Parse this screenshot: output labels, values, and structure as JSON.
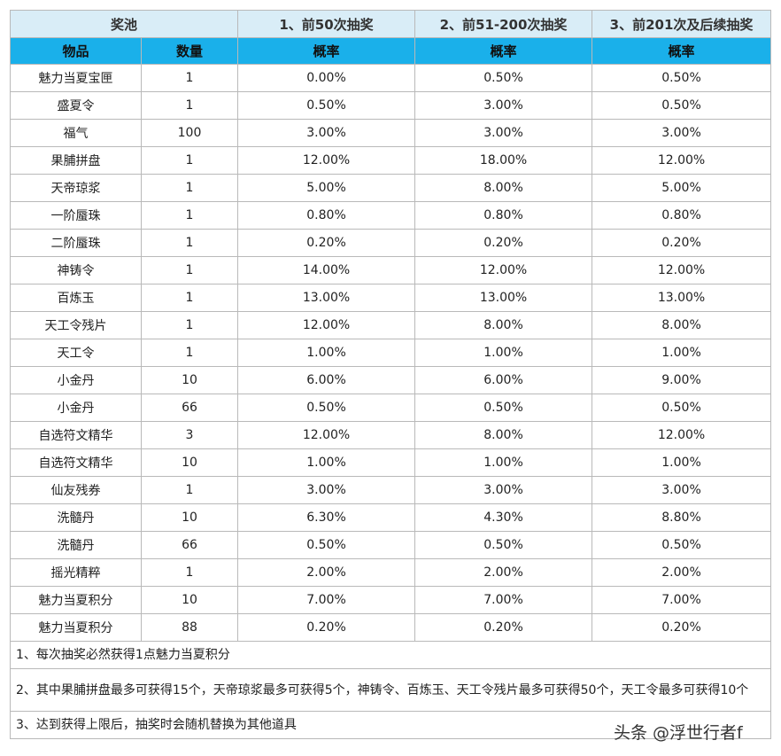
{
  "header": {
    "pool_label": "奖池",
    "phase1": "1、前50次抽奖",
    "phase2": "2、前51-200次抽奖",
    "phase3": "3、前201次及后续抽奖"
  },
  "subheader": {
    "item": "物品",
    "quantity": "数量",
    "prob1": "概率",
    "prob2": "概率",
    "prob3": "概率"
  },
  "rows": [
    {
      "item": "魅力当夏宝匣",
      "qty": "1",
      "p1": "0.00%",
      "p2": "0.50%",
      "p3": "0.50%"
    },
    {
      "item": "盛夏令",
      "qty": "1",
      "p1": "0.50%",
      "p2": "3.00%",
      "p3": "0.50%"
    },
    {
      "item": "福气",
      "qty": "100",
      "p1": "3.00%",
      "p2": "3.00%",
      "p3": "3.00%"
    },
    {
      "item": "果脯拼盘",
      "qty": "1",
      "p1": "12.00%",
      "p2": "18.00%",
      "p3": "12.00%"
    },
    {
      "item": "天帝琼浆",
      "qty": "1",
      "p1": "5.00%",
      "p2": "8.00%",
      "p3": "5.00%"
    },
    {
      "item": "一阶蜃珠",
      "qty": "1",
      "p1": "0.80%",
      "p2": "0.80%",
      "p3": "0.80%"
    },
    {
      "item": "二阶蜃珠",
      "qty": "1",
      "p1": "0.20%",
      "p2": "0.20%",
      "p3": "0.20%"
    },
    {
      "item": "神铸令",
      "qty": "1",
      "p1": "14.00%",
      "p2": "12.00%",
      "p3": "12.00%"
    },
    {
      "item": "百炼玉",
      "qty": "1",
      "p1": "13.00%",
      "p2": "13.00%",
      "p3": "13.00%"
    },
    {
      "item": "天工令残片",
      "qty": "1",
      "p1": "12.00%",
      "p2": "8.00%",
      "p3": "8.00%"
    },
    {
      "item": "天工令",
      "qty": "1",
      "p1": "1.00%",
      "p2": "1.00%",
      "p3": "1.00%"
    },
    {
      "item": "小金丹",
      "qty": "10",
      "p1": "6.00%",
      "p2": "6.00%",
      "p3": "9.00%"
    },
    {
      "item": "小金丹",
      "qty": "66",
      "p1": "0.50%",
      "p2": "0.50%",
      "p3": "0.50%"
    },
    {
      "item": "自选符文精华",
      "qty": "3",
      "p1": "12.00%",
      "p2": "8.00%",
      "p3": "12.00%"
    },
    {
      "item": "自选符文精华",
      "qty": "10",
      "p1": "1.00%",
      "p2": "1.00%",
      "p3": "1.00%"
    },
    {
      "item": "仙友残券",
      "qty": "1",
      "p1": "3.00%",
      "p2": "3.00%",
      "p3": "3.00%"
    },
    {
      "item": "洗髓丹",
      "qty": "10",
      "p1": "6.30%",
      "p2": "4.30%",
      "p3": "8.80%"
    },
    {
      "item": "洗髓丹",
      "qty": "66",
      "p1": "0.50%",
      "p2": "0.50%",
      "p3": "0.50%"
    },
    {
      "item": "摇光精粹",
      "qty": "1",
      "p1": "2.00%",
      "p2": "2.00%",
      "p3": "2.00%"
    },
    {
      "item": "魅力当夏积分",
      "qty": "10",
      "p1": "7.00%",
      "p2": "7.00%",
      "p3": "7.00%"
    },
    {
      "item": "魅力当夏积分",
      "qty": "88",
      "p1": "0.20%",
      "p2": "0.20%",
      "p3": "0.20%"
    }
  ],
  "notes": [
    "1、每次抽奖必然获得1点魅力当夏积分",
    "2、其中果脯拼盘最多可获得15个，天帝琼浆最多可获得5个，神铸令、百炼玉、天工令残片最多可获得50个，天工令最多可获得10个",
    "3、达到获得上限后，抽奖时会随机替换为其他道具"
  ],
  "watermark": "头条 @浮世行者f",
  "colors": {
    "header_bg": "#d9edf7",
    "subheader_bg": "#1ab0ea",
    "border": "#b9b9b9"
  }
}
